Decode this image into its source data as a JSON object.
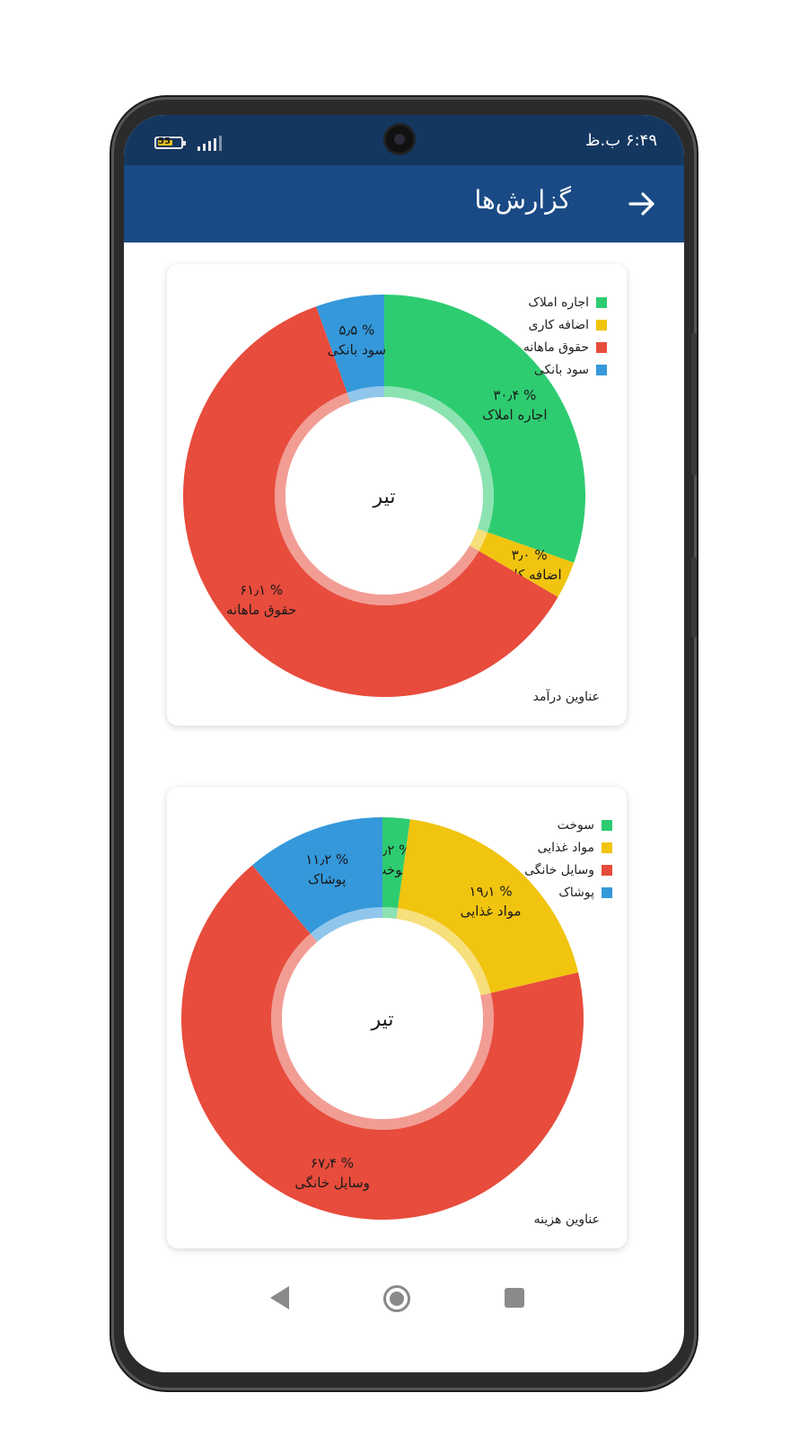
{
  "status_bar": {
    "time": "۶:۴۹ ب.ظ",
    "battery": "55"
  },
  "app_bar": {
    "title": "گزارش‌ها"
  },
  "charts": [
    {
      "title": "عناوین درآمد",
      "center_label": "تیر",
      "type": "pie",
      "slices": [
        {
          "name": "اجاره املاک",
          "percent": 30.4,
          "label_value": "۳۰٫۴ %",
          "color": "#2ecc71"
        },
        {
          "name": "اضافه کاری",
          "percent": 3.0,
          "label_value": "۳٫۰ %",
          "color": "#f1c40f"
        },
        {
          "name": "حقوق ماهانه",
          "percent": 61.1,
          "label_value": "۶۱٫۱ %",
          "color": "#e74c3c"
        },
        {
          "name": "سود بانکی",
          "percent": 5.5,
          "label_value": "۵٫۵ %",
          "color": "#3498db"
        }
      ]
    },
    {
      "title": "عناوین هزینه",
      "center_label": "تیر",
      "type": "pie",
      "slices": [
        {
          "name": "سوخت",
          "percent": 2.2,
          "label_value": "۲٫۲ %",
          "color": "#2ecc71"
        },
        {
          "name": "مواد غذایی",
          "percent": 19.1,
          "label_value": "۱۹٫۱ %",
          "color": "#f1c40f"
        },
        {
          "name": "وسایل خانگی",
          "percent": 67.4,
          "label_value": "۶۷٫۴ %",
          "color": "#e74c3c"
        },
        {
          "name": "پوشاک",
          "percent": 11.2,
          "label_value": "۱۱٫۲ %",
          "color": "#3498db"
        }
      ]
    }
  ],
  "chart_data": [
    {
      "type": "pie",
      "title": "عناوین درآمد",
      "categories": [
        "اجاره املاک",
        "اضافه کاری",
        "حقوق ماهانه",
        "سود بانکی"
      ],
      "values": [
        30.4,
        3.0,
        61.1,
        5.5
      ],
      "legend": "top-right"
    },
    {
      "type": "pie",
      "title": "عناوین هزینه",
      "categories": [
        "سوخت",
        "مواد غذایی",
        "وسایل خانگی",
        "پوشاک"
      ],
      "values": [
        2.2,
        19.1,
        67.4,
        11.2
      ],
      "legend": "top-right"
    }
  ]
}
